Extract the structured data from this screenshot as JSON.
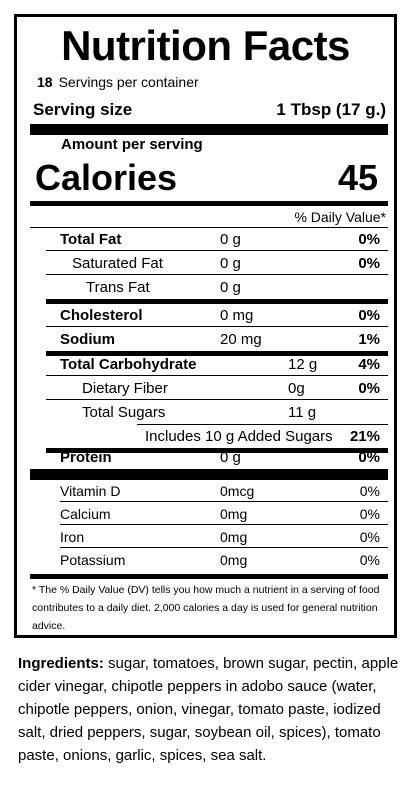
{
  "title": "Nutrition Facts",
  "servings": {
    "count": "18",
    "label": "Servings per container"
  },
  "serving_size": {
    "label": "Serving size",
    "value": "1 Tbsp (17 g.)"
  },
  "amount_per_serving": "Amount per serving",
  "calories": {
    "label": "Calories",
    "value": "45"
  },
  "daily_value_header": "% Daily Value*",
  "nutrients": [
    {
      "name": "Total Fat",
      "amount": "0 g",
      "dv": "0%"
    },
    {
      "name": "Saturated Fat",
      "amount": "0 g",
      "dv": "0%"
    },
    {
      "name": "Trans Fat",
      "amount": "0 g",
      "dv": ""
    },
    {
      "name": "Cholesterol",
      "amount": "0 mg",
      "dv": "0%"
    },
    {
      "name": "Sodium",
      "amount": "20 mg",
      "dv": "1%"
    },
    {
      "name": "Total Carbohydrate",
      "amount": "12 g",
      "dv": "4%"
    },
    {
      "name": "Dietary Fiber",
      "amount": "0g",
      "dv": "0%"
    },
    {
      "name": "Total Sugars",
      "amount": "11 g",
      "dv": ""
    },
    {
      "name": "Includes 10 g Added Sugars",
      "amount": "",
      "dv": "21%"
    },
    {
      "name": "Protein",
      "amount": "0 g",
      "dv": "0%"
    }
  ],
  "vitamins": [
    {
      "name": "Vitamin D",
      "amount": "0mcg",
      "dv": "0%"
    },
    {
      "name": "Calcium",
      "amount": "0mg",
      "dv": "0%"
    },
    {
      "name": "Iron",
      "amount": "0mg",
      "dv": "0%"
    },
    {
      "name": "Potassium",
      "amount": "0mg",
      "dv": "0%"
    }
  ],
  "footnote": "* The % Daily Value (DV) tells you how much a nutrient in a serving of food contributes to a daily diet.  2,000 calories a day is used for general nutrition advice.",
  "ingredients": {
    "label": "Ingredients:",
    "text": " sugar, tomatoes, brown sugar, pectin, apple cider vinegar, chipotle peppers in adobo sauce (water, chipotle peppers, onion, vinegar, tomato paste, iodized salt, dried peppers, sugar, soybean oil, spices), tomato paste, onions, garlic, spices, sea salt."
  }
}
